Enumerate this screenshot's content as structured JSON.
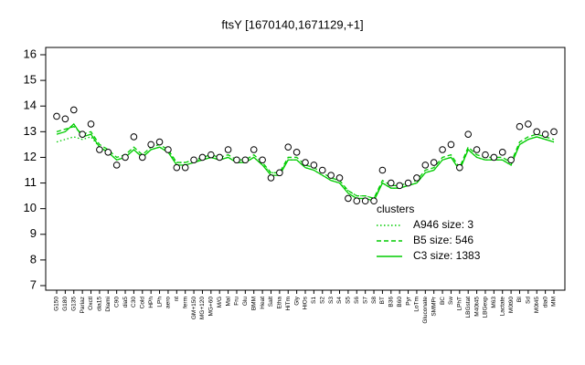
{
  "chart_data": {
    "type": "line",
    "title": "ftsY [1670140,1671129,+1]",
    "categories": [
      "G150",
      "G180",
      "G135",
      "Pariaz",
      "Oxctl",
      "dia15",
      "Diami",
      "C90",
      "dia5",
      "C30",
      "Cold",
      "HPh",
      "LPh",
      "aero",
      "nt",
      "ferm",
      "GM+150",
      "MG+120",
      "MG+60",
      "M/G",
      "Mal",
      "Fru",
      "Glu",
      "BMM",
      "Heat",
      "Salt",
      "Etha",
      "HiTm",
      "Gly",
      "HiOs",
      "S1",
      "S2",
      "S3",
      "S4",
      "S5",
      "S6",
      "S7",
      "S8",
      "BT",
      "B36",
      "B60",
      "Pyr",
      "LoTm",
      "Gluconate",
      "SMMPr",
      "BC",
      "Sw",
      "LPhT",
      "LBGstat",
      "M40t45",
      "LBGexp",
      "M63",
      "Lactate",
      "M0t90",
      "BI",
      "Sd",
      "M0t45",
      "dia0",
      "MM"
    ],
    "values": [
      13.6,
      13.5,
      13.85,
      12.9,
      13.3,
      12.3,
      12.2,
      11.7,
      12.0,
      12.8,
      12.0,
      12.5,
      12.6,
      12.3,
      11.6,
      11.6,
      11.9,
      12.0,
      12.1,
      12.0,
      12.3,
      11.9,
      11.9,
      12.3,
      11.9,
      11.2,
      11.4,
      12.4,
      12.2,
      11.8,
      11.7,
      11.5,
      11.3,
      11.2,
      10.4,
      10.3,
      10.3,
      10.3,
      11.5,
      11.0,
      10.9,
      11.0,
      11.2,
      11.7,
      11.8,
      12.3,
      12.5,
      11.6,
      12.9,
      12.3,
      12.1,
      12.0,
      12.2,
      11.9,
      13.2,
      13.3,
      13.0,
      12.9,
      13.0
    ],
    "legend_title": "clusters",
    "series": [
      {
        "name": "A946 size: 3",
        "color": "#00cc00",
        "style": "dotted",
        "values": [
          12.6,
          12.7,
          12.8,
          12.7,
          12.8,
          12.4,
          12.2,
          11.9,
          12.0,
          12.3,
          12.0,
          12.3,
          12.4,
          12.2,
          11.8,
          11.8,
          11.9,
          11.9,
          12.0,
          11.9,
          12.0,
          11.8,
          11.8,
          12.0,
          11.7,
          11.4,
          11.4,
          11.9,
          11.9,
          11.6,
          11.5,
          11.3,
          11.1,
          11.0,
          10.7,
          10.5,
          10.5,
          10.4,
          11.0,
          10.8,
          10.8,
          10.9,
          11.0,
          11.4,
          11.5,
          11.9,
          12.0,
          11.5,
          12.3,
          12.0,
          11.9,
          11.9,
          11.9,
          11.7,
          12.5,
          12.7,
          12.8,
          12.7,
          12.6
        ]
      },
      {
        "name": "B5 size: 546",
        "color": "#00cc00",
        "style": "dashed",
        "values": [
          13.0,
          13.1,
          13.2,
          12.9,
          13.0,
          12.5,
          12.3,
          12.0,
          12.1,
          12.4,
          12.1,
          12.4,
          12.5,
          12.3,
          11.8,
          11.8,
          11.9,
          12.0,
          12.1,
          12.0,
          12.1,
          11.9,
          11.9,
          12.1,
          11.8,
          11.4,
          11.4,
          12.0,
          12.0,
          11.7,
          11.6,
          11.4,
          11.2,
          11.1,
          10.7,
          10.5,
          10.5,
          10.4,
          11.1,
          10.9,
          10.9,
          11.0,
          11.1,
          11.5,
          11.6,
          12.0,
          12.1,
          11.6,
          12.4,
          12.1,
          12.0,
          12.0,
          12.0,
          11.8,
          12.6,
          12.8,
          12.9,
          12.8,
          12.7
        ]
      },
      {
        "name": "C3 size: 1383",
        "color": "#00cc00",
        "style": "solid",
        "values": [
          12.9,
          13.0,
          13.3,
          12.8,
          12.9,
          12.4,
          12.2,
          11.9,
          12.0,
          12.3,
          12.0,
          12.3,
          12.4,
          12.2,
          11.7,
          11.7,
          11.8,
          11.9,
          12.0,
          11.9,
          12.0,
          11.8,
          11.8,
          12.0,
          11.7,
          11.3,
          11.3,
          11.9,
          11.9,
          11.6,
          11.5,
          11.3,
          11.1,
          11.0,
          10.6,
          10.4,
          10.4,
          10.3,
          11.0,
          10.8,
          10.8,
          10.9,
          11.0,
          11.4,
          11.5,
          11.9,
          12.0,
          11.5,
          12.3,
          12.0,
          11.9,
          11.9,
          11.9,
          11.7,
          12.5,
          12.7,
          12.8,
          12.7,
          12.6
        ]
      }
    ],
    "ylim": [
      7,
      16
    ],
    "yticks": [
      7,
      8,
      9,
      10,
      11,
      12,
      13,
      14,
      15,
      16
    ],
    "grid": false,
    "legend_position": "right"
  }
}
